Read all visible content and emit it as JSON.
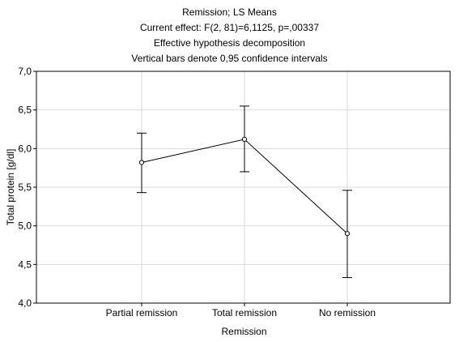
{
  "chart_data": {
    "type": "line",
    "title": "Remission; LS Means",
    "subtitle": [
      "Current effect: F(2, 81)=6,1125, p=,00337",
      "Effective hypothesis decomposition",
      "Vertical bars denote 0,95 confidence intervals"
    ],
    "xlabel": "Remission",
    "ylabel": "Total protein [g/dl]",
    "categories": [
      "Partial remission",
      "Total remission",
      "No remission"
    ],
    "series": [
      {
        "values": [
          5.82,
          6.12,
          4.9
        ],
        "ci_lower": [
          5.43,
          5.7,
          4.33
        ],
        "ci_upper": [
          6.2,
          6.55,
          5.46
        ]
      }
    ],
    "ylim": [
      4.0,
      7.0
    ],
    "yticks": [
      4.0,
      4.5,
      5.0,
      5.5,
      6.0,
      6.5,
      7.0
    ],
    "ytick_labels": [
      "4,0",
      "4,5",
      "5,0",
      "5,5",
      "6,0",
      "6,5",
      "7,0"
    ],
    "grid": true,
    "legend": "none",
    "colors": {
      "line": "#000000",
      "grid": "#d9d9d9",
      "frame": "#000000"
    }
  }
}
